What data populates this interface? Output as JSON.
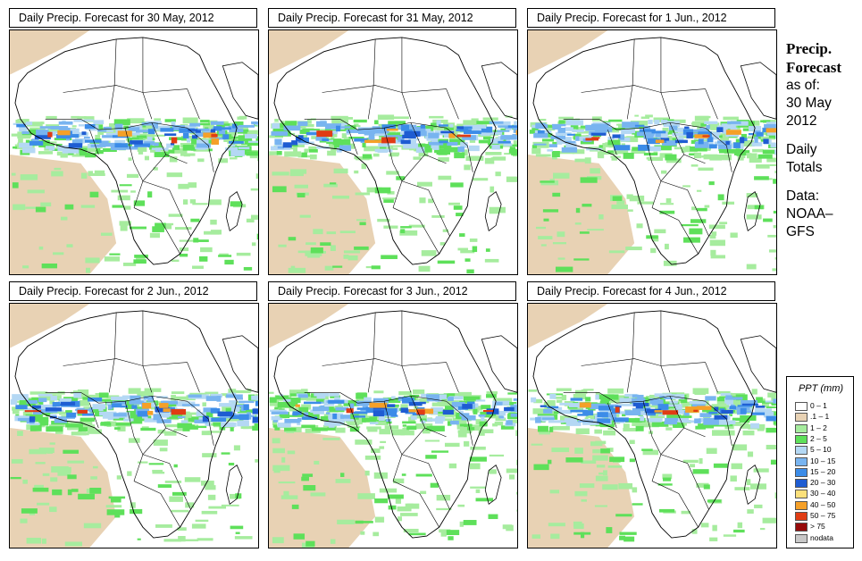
{
  "panels": [
    {
      "title": "Daily Precip. Forecast for  30 May, 2012"
    },
    {
      "title": "Daily Precip. Forecast for  31 May, 2012"
    },
    {
      "title": "Daily Precip. Forecast for  1 Jun., 2012"
    },
    {
      "title": "Daily Precip. Forecast for  2 Jun., 2012"
    },
    {
      "title": "Daily Precip. Forecast for  3 Jun., 2012"
    },
    {
      "title": "Daily Precip. Forecast for  4 Jun., 2012"
    }
  ],
  "sidebar": {
    "title_line1": "Precip.",
    "title_line2": "Forecast",
    "asof_label": "as of:",
    "date_line1": "30 May",
    "date_line2": "2012",
    "totals_line1": "Daily",
    "totals_line2": "Totals",
    "data_line1": "Data:",
    "data_line2": "NOAA–",
    "data_line3": "GFS"
  },
  "legend": {
    "title": "PPT (mm)",
    "items": [
      {
        "label": "0 – 1",
        "color": "#ffffff"
      },
      {
        "label": ".1 – 1",
        "color": "#e8d2b4"
      },
      {
        "label": "1 – 2",
        "color": "#a6ec9e"
      },
      {
        "label": "2 – 5",
        "color": "#5ee05a"
      },
      {
        "label": "5 – 10",
        "color": "#b4d8f4"
      },
      {
        "label": "10 – 15",
        "color": "#78b4f0"
      },
      {
        "label": "15 – 20",
        "color": "#3c8ce8"
      },
      {
        "label": "20 – 30",
        "color": "#1e5cd2"
      },
      {
        "label": "30 – 40",
        "color": "#fbe07a"
      },
      {
        "label": "40 – 50",
        "color": "#f5a028"
      },
      {
        "label": "50 – 75",
        "color": "#e03c14"
      },
      {
        "label": "> 75",
        "color": "#960a0a"
      },
      {
        "label": "nodata",
        "color": "#c8c8c8"
      }
    ]
  }
}
